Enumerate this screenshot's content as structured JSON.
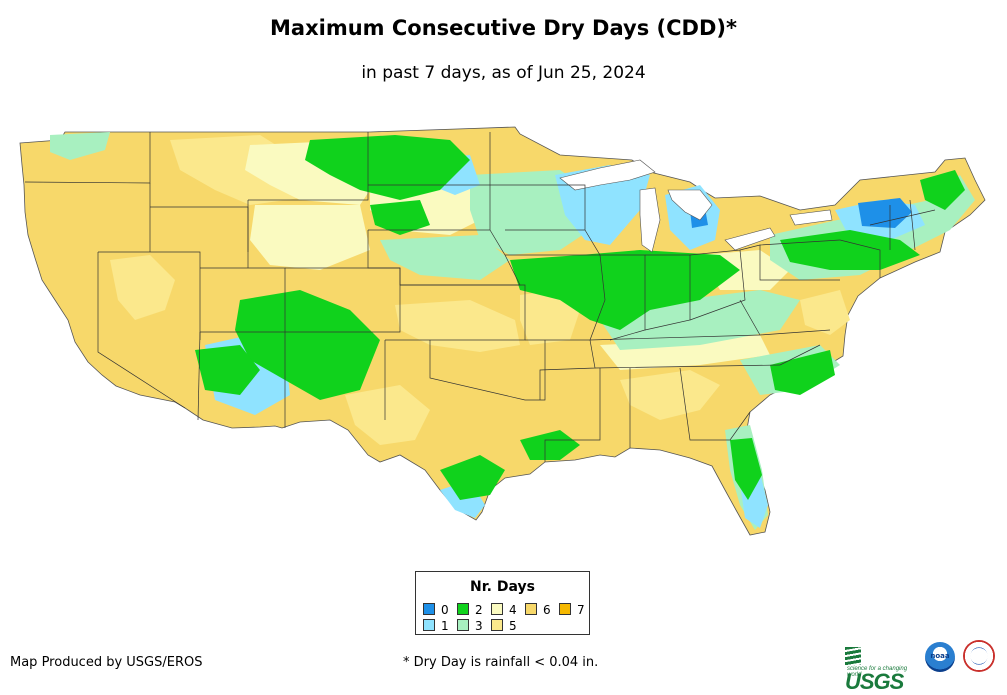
{
  "title": "Maximum Consecutive Dry Days (CDD)*",
  "subtitle": "in past 7 days, as of Jun 25, 2024",
  "legend": {
    "title": "Nr. Days",
    "items": [
      {
        "label": "0",
        "color": "#1e90e8"
      },
      {
        "label": "1",
        "color": "#8fe3ff"
      },
      {
        "label": "2",
        "color": "#10d21c"
      },
      {
        "label": "3",
        "color": "#a8f0c0"
      },
      {
        "label": "4",
        "color": "#fafac0"
      },
      {
        "label": "5",
        "color": "#fbe88c"
      },
      {
        "label": "6",
        "color": "#f7d86a"
      },
      {
        "label": "7",
        "color": "#f5b800"
      }
    ]
  },
  "credit": "Map Produced by USGS/EROS",
  "footnote": "* Dry Day is rainfall < 0.04 in.",
  "logos": {
    "usgs": "USGS",
    "usgs_tagline": "science for a changing world",
    "noaa": "noaa"
  },
  "map": {
    "region": "Contiguous United States",
    "metric": "Max consecutive dry days in past 7 days"
  }
}
